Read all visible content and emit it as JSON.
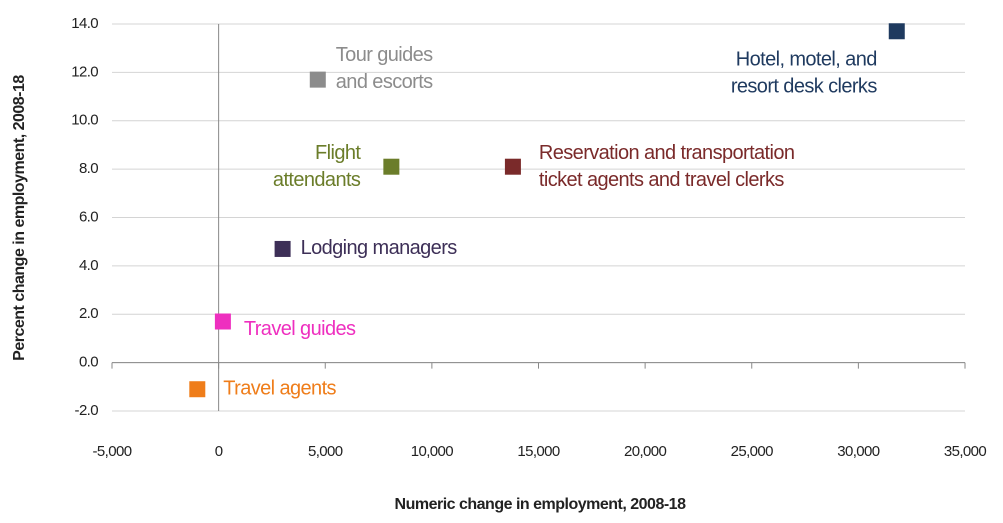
{
  "chart_data": {
    "type": "scatter",
    "x_label": "Numeric change in employment, 2008-18",
    "y_label": "Percent change in employment, 2008-18",
    "xlim": [
      -5000,
      35000
    ],
    "xticks": [
      {
        "value": -5000,
        "label": "-5,000"
      },
      0,
      {
        "value": 5000,
        "label": "5,000"
      },
      {
        "value": 10000,
        "label": "10,000"
      },
      {
        "value": 15000,
        "label": "15,000"
      },
      {
        "value": 20000,
        "label": "20,000"
      },
      {
        "value": 25000,
        "label": "25,000"
      },
      {
        "value": 30000,
        "label": "30,000"
      },
      {
        "value": 35000,
        "label": "35,000"
      }
    ],
    "ylim": [
      -2,
      14
    ],
    "yticks": [
      {
        "value": -2,
        "label": "-2.0"
      },
      {
        "value": 0,
        "label": "0.0"
      },
      {
        "value": 2,
        "label": "2.0"
      },
      {
        "value": 4,
        "label": "4.0"
      },
      {
        "value": 6,
        "label": "6.0"
      },
      {
        "value": 8,
        "label": "8.0"
      },
      {
        "value": 10,
        "label": "10.0"
      },
      {
        "value": 12,
        "label": "12.0"
      },
      {
        "value": 14,
        "label": "14.0"
      }
    ],
    "grid": true,
    "series": [
      {
        "name": [
          "Hotel, motel, and",
          "resort desk clerks"
        ],
        "color": "#1f3a5f",
        "x": [
          31800
        ],
        "values": [
          13.7
        ]
      },
      {
        "name": [
          "Tour guides",
          "and escorts"
        ],
        "color": "#8c8c8c",
        "x": [
          4650
        ],
        "values": [
          11.7
        ]
      },
      {
        "name": [
          "Flight",
          "attendants"
        ],
        "color": "#6b7d2a",
        "x": [
          8100
        ],
        "values": [
          8.1
        ]
      },
      {
        "name": [
          "Reservation and transportation",
          "ticket agents and  travel clerks"
        ],
        "color": "#7a2a2a",
        "x": [
          13800
        ],
        "values": [
          8.1
        ]
      },
      {
        "name": [
          "Lodging managers"
        ],
        "color": "#3d2f57",
        "x": [
          3000
        ],
        "values": [
          4.7
        ]
      },
      {
        "name": [
          "Travel guides"
        ],
        "color": "#ee2fbf",
        "x": [
          200
        ],
        "values": [
          1.7
        ]
      },
      {
        "name": [
          "Travel agents"
        ],
        "color": "#ef7d1a",
        "x": [
          -1000
        ],
        "values": [
          -1.1
        ]
      }
    ]
  }
}
